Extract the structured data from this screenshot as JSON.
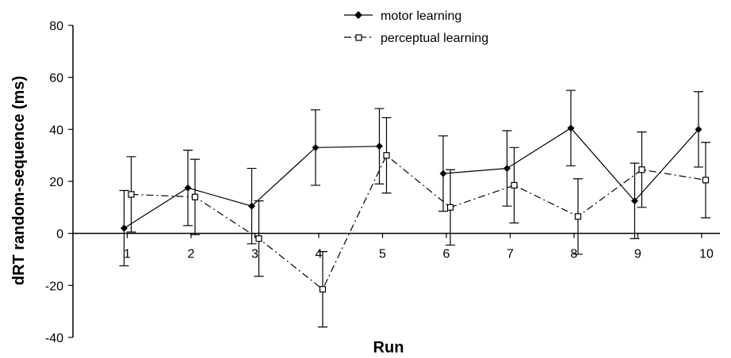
{
  "chart_data": {
    "type": "line",
    "title": "",
    "xlabel": "Run",
    "ylabel": "dRT random-sequence (ms)",
    "x": [
      1,
      2,
      3,
      4,
      5,
      6,
      7,
      8,
      9,
      10
    ],
    "x_tick_labels": [
      "1",
      "2",
      "3",
      "4",
      "5",
      "6",
      "7",
      "8",
      "9",
      "10"
    ],
    "ylim": [
      -40,
      80
    ],
    "y_ticks": [
      -40,
      -20,
      0,
      20,
      40,
      60,
      80
    ],
    "y_tick_labels": [
      "-40",
      "-20",
      "0",
      "20",
      "40",
      "60",
      "80"
    ],
    "grid": false,
    "legend_position": "top-center",
    "series": [
      {
        "name": "motor learning",
        "line_style": "solid",
        "marker": "filled-diamond",
        "color": "#000000",
        "values": [
          2,
          17.5,
          10.5,
          33,
          33.5,
          23,
          25,
          40.5,
          12.5,
          40
        ],
        "error": [
          14.5,
          14.5,
          14.5,
          14.5,
          14.5,
          14.5,
          14.5,
          14.5,
          14.5,
          14.5
        ],
        "segments": [
          [
            1,
            5
          ],
          [
            6,
            10
          ]
        ]
      },
      {
        "name": "perceptual learning",
        "line_style": "dash-dot",
        "marker": "open-square",
        "color": "#000000",
        "values": [
          15,
          14,
          -2,
          -21.5,
          30,
          10,
          18.5,
          6.5,
          24.5,
          20.5
        ],
        "error": [
          14.5,
          14.5,
          14.5,
          14.5,
          14.5,
          14.5,
          14.5,
          14.5,
          14.5,
          14.5
        ],
        "segments": [
          [
            1,
            10
          ]
        ]
      }
    ]
  }
}
